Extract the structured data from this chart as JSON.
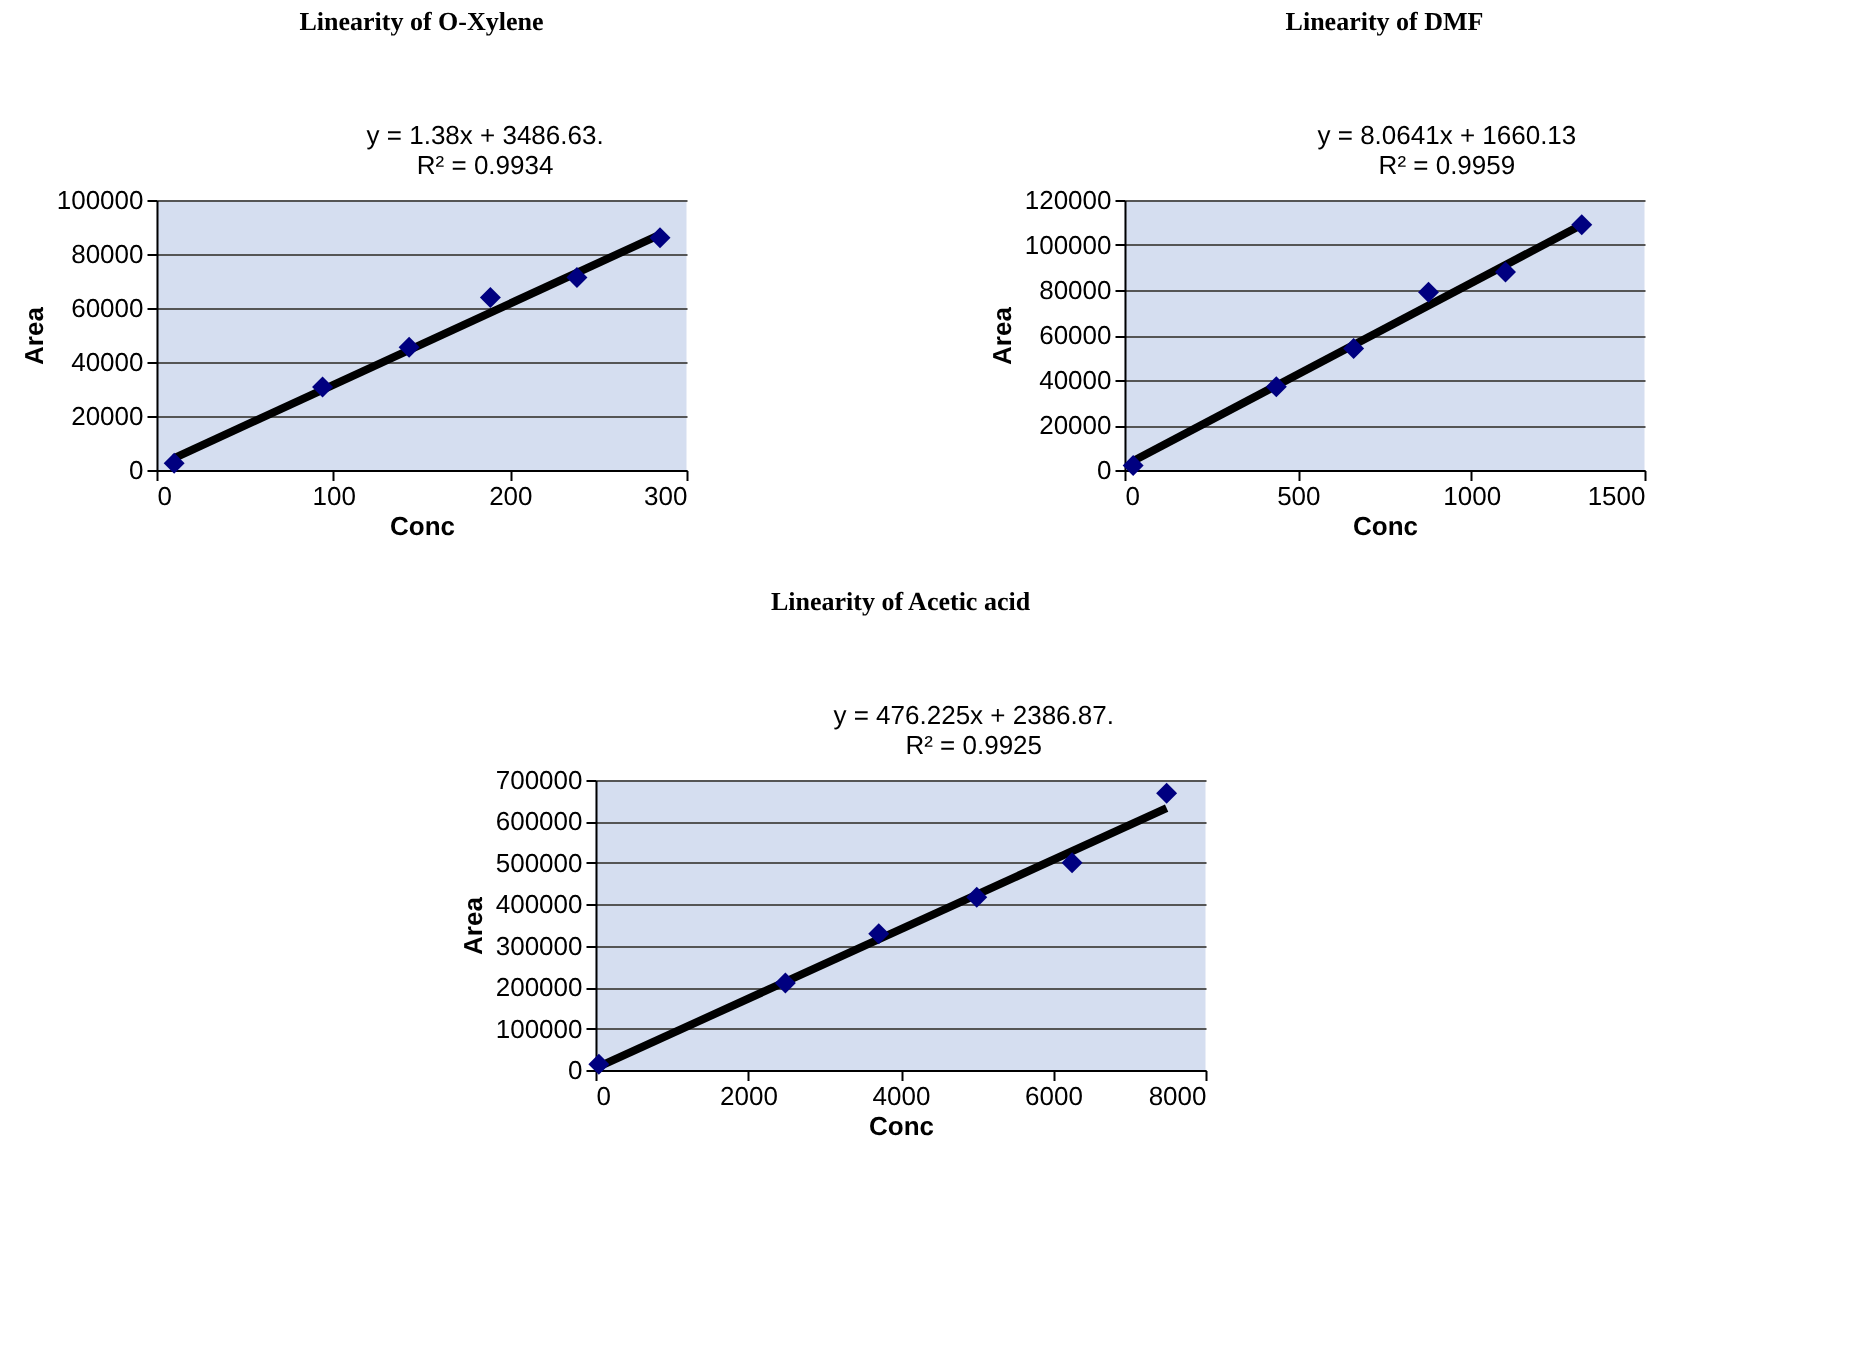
{
  "chart_data": [
    {
      "type": "scatter",
      "title": "Linearity of O-Xylene",
      "xlabel": "Conc",
      "ylabel": "Area",
      "annotations": [
        "y = 1.38x + 3486.63.",
        "R² = 0.9934"
      ],
      "xlim": [
        0,
        300
      ],
      "xticks": [
        0,
        100,
        200,
        300
      ],
      "ylim": [
        0,
        100000
      ],
      "yticks": [
        0,
        20000,
        40000,
        60000,
        80000,
        100000
      ],
      "grid": "y",
      "marker": "diamond",
      "series": [
        {
          "type": "scatter",
          "color": "#000080",
          "x": [
            10,
            94,
            143,
            189,
            238,
            285
          ],
          "values": [
            2500,
            30700,
            45500,
            63900,
            71300,
            86000
          ]
        },
        {
          "type": "line",
          "color": "#000000",
          "marker": "none",
          "x": [
            10,
            285
          ],
          "values": [
            4400,
            87200
          ]
        }
      ]
    },
    {
      "type": "scatter",
      "title": "Linearity of DMF",
      "xlabel": "Conc",
      "ylabel": "Area",
      "annotations": [
        "y = 8.0641x + 1660.13",
        "R² = 0.9959"
      ],
      "xlim": [
        0,
        1500
      ],
      "xticks": [
        0,
        500,
        1000,
        1500
      ],
      "ylim": [
        0,
        120000
      ],
      "yticks": [
        0,
        20000,
        40000,
        60000,
        80000,
        100000,
        120000
      ],
      "grid": "y",
      "marker": "diamond",
      "series": [
        {
          "type": "scatter",
          "color": "#000080",
          "x": [
            25,
            438,
            661,
            877,
            1099,
            1319
          ],
          "values": [
            2000,
            37000,
            54000,
            79000,
            88000,
            109000
          ]
        },
        {
          "type": "line",
          "color": "#000000",
          "marker": "none",
          "x": [
            25,
            1319
          ],
          "values": [
            4000,
            109000
          ]
        }
      ]
    },
    {
      "type": "scatter",
      "title": "Linearity of Acetic acid",
      "xlabel": "Conc",
      "ylabel": "Area",
      "annotations": [
        "y = 476.225x + 2386.87.",
        "R² = 0.9925"
      ],
      "xlim": [
        0,
        8000
      ],
      "xticks": [
        0,
        2000,
        4000,
        6000,
        8000
      ],
      "ylim": [
        0,
        700000
      ],
      "yticks": [
        0,
        100000,
        200000,
        300000,
        400000,
        500000,
        600000,
        700000
      ],
      "grid": "y",
      "marker": "diamond",
      "series": [
        {
          "type": "scatter",
          "color": "#000080",
          "x": [
            44,
            2490,
            3715,
            5000,
            6250,
            7490
          ],
          "values": [
            14000,
            210000,
            329000,
            417000,
            500000,
            668000
          ]
        },
        {
          "type": "line",
          "color": "#000000",
          "marker": "none",
          "x": [
            44,
            7490
          ],
          "values": [
            8000,
            632000
          ]
        }
      ]
    }
  ]
}
